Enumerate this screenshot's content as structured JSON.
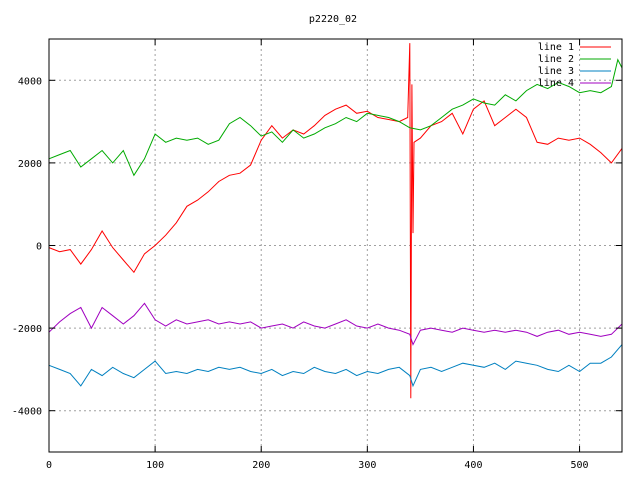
{
  "chart_data": {
    "type": "line",
    "title": "p2220_02",
    "xlabel": "",
    "ylabel": "",
    "xlim": [
      0,
      540
    ],
    "ylim": [
      -5000,
      5000
    ],
    "xticks": [
      0,
      100,
      200,
      300,
      400,
      500
    ],
    "yticks": [
      -4000,
      -2000,
      0,
      2000,
      4000
    ],
    "grid": true,
    "legend_position": "top-right",
    "series": [
      {
        "name": "line 1",
        "color": "#ff0000",
        "points": [
          [
            0,
            -50
          ],
          [
            10,
            -150
          ],
          [
            20,
            -100
          ],
          [
            30,
            -450
          ],
          [
            40,
            -100
          ],
          [
            50,
            350
          ],
          [
            60,
            -50
          ],
          [
            70,
            -350
          ],
          [
            80,
            -650
          ],
          [
            90,
            -200
          ],
          [
            100,
            0
          ],
          [
            110,
            250
          ],
          [
            120,
            550
          ],
          [
            130,
            950
          ],
          [
            140,
            1100
          ],
          [
            150,
            1300
          ],
          [
            160,
            1550
          ],
          [
            170,
            1700
          ],
          [
            180,
            1750
          ],
          [
            190,
            1950
          ],
          [
            200,
            2550
          ],
          [
            210,
            2900
          ],
          [
            220,
            2600
          ],
          [
            230,
            2800
          ],
          [
            240,
            2700
          ],
          [
            250,
            2900
          ],
          [
            260,
            3150
          ],
          [
            270,
            3300
          ],
          [
            280,
            3400
          ],
          [
            290,
            3200
          ],
          [
            300,
            3250
          ],
          [
            310,
            3100
          ],
          [
            320,
            3050
          ],
          [
            330,
            3000
          ],
          [
            338,
            3100
          ],
          [
            340,
            4900
          ],
          [
            341,
            -3700
          ],
          [
            342,
            3900
          ],
          [
            343,
            300
          ],
          [
            344,
            2500
          ],
          [
            350,
            2600
          ],
          [
            360,
            2900
          ],
          [
            370,
            3000
          ],
          [
            380,
            3200
          ],
          [
            390,
            2700
          ],
          [
            400,
            3300
          ],
          [
            410,
            3500
          ],
          [
            420,
            2900
          ],
          [
            430,
            3100
          ],
          [
            440,
            3300
          ],
          [
            450,
            3100
          ],
          [
            460,
            2500
          ],
          [
            470,
            2450
          ],
          [
            480,
            2600
          ],
          [
            490,
            2550
          ],
          [
            500,
            2600
          ],
          [
            510,
            2450
          ],
          [
            520,
            2250
          ],
          [
            530,
            2000
          ],
          [
            540,
            2350
          ]
        ]
      },
      {
        "name": "line 2",
        "color": "#00aa00",
        "points": [
          [
            0,
            2100
          ],
          [
            10,
            2200
          ],
          [
            20,
            2300
          ],
          [
            30,
            1900
          ],
          [
            40,
            2100
          ],
          [
            50,
            2300
          ],
          [
            60,
            2000
          ],
          [
            70,
            2300
          ],
          [
            80,
            1700
          ],
          [
            90,
            2100
          ],
          [
            100,
            2700
          ],
          [
            110,
            2500
          ],
          [
            120,
            2600
          ],
          [
            130,
            2550
          ],
          [
            140,
            2600
          ],
          [
            150,
            2450
          ],
          [
            160,
            2550
          ],
          [
            170,
            2950
          ],
          [
            180,
            3100
          ],
          [
            190,
            2900
          ],
          [
            200,
            2650
          ],
          [
            210,
            2750
          ],
          [
            220,
            2500
          ],
          [
            230,
            2800
          ],
          [
            240,
            2600
          ],
          [
            250,
            2700
          ],
          [
            260,
            2850
          ],
          [
            270,
            2950
          ],
          [
            280,
            3100
          ],
          [
            290,
            3000
          ],
          [
            300,
            3200
          ],
          [
            310,
            3150
          ],
          [
            320,
            3100
          ],
          [
            330,
            3000
          ],
          [
            340,
            2850
          ],
          [
            350,
            2800
          ],
          [
            360,
            2900
          ],
          [
            370,
            3100
          ],
          [
            380,
            3300
          ],
          [
            390,
            3400
          ],
          [
            400,
            3550
          ],
          [
            410,
            3450
          ],
          [
            420,
            3400
          ],
          [
            430,
            3650
          ],
          [
            440,
            3500
          ],
          [
            450,
            3750
          ],
          [
            460,
            3900
          ],
          [
            470,
            3800
          ],
          [
            480,
            3950
          ],
          [
            490,
            3850
          ],
          [
            500,
            3700
          ],
          [
            510,
            3750
          ],
          [
            520,
            3700
          ],
          [
            530,
            3850
          ],
          [
            536,
            4500
          ],
          [
            540,
            4300
          ]
        ]
      },
      {
        "name": "line 3",
        "color": "#0080c0",
        "points": [
          [
            0,
            -2900
          ],
          [
            10,
            -3000
          ],
          [
            20,
            -3100
          ],
          [
            30,
            -3400
          ],
          [
            40,
            -3000
          ],
          [
            50,
            -3150
          ],
          [
            60,
            -2950
          ],
          [
            70,
            -3100
          ],
          [
            80,
            -3200
          ],
          [
            90,
            -3000
          ],
          [
            100,
            -2800
          ],
          [
            110,
            -3100
          ],
          [
            120,
            -3050
          ],
          [
            130,
            -3100
          ],
          [
            140,
            -3000
          ],
          [
            150,
            -3050
          ],
          [
            160,
            -2950
          ],
          [
            170,
            -3000
          ],
          [
            180,
            -2950
          ],
          [
            190,
            -3050
          ],
          [
            200,
            -3100
          ],
          [
            210,
            -3000
          ],
          [
            220,
            -3150
          ],
          [
            230,
            -3050
          ],
          [
            240,
            -3100
          ],
          [
            250,
            -2950
          ],
          [
            260,
            -3050
          ],
          [
            270,
            -3100
          ],
          [
            280,
            -3000
          ],
          [
            290,
            -3150
          ],
          [
            300,
            -3050
          ],
          [
            310,
            -3100
          ],
          [
            320,
            -3000
          ],
          [
            330,
            -2950
          ],
          [
            340,
            -3150
          ],
          [
            343,
            -3400
          ],
          [
            350,
            -3000
          ],
          [
            360,
            -2950
          ],
          [
            370,
            -3050
          ],
          [
            380,
            -2950
          ],
          [
            390,
            -2850
          ],
          [
            400,
            -2900
          ],
          [
            410,
            -2950
          ],
          [
            420,
            -2850
          ],
          [
            430,
            -3000
          ],
          [
            440,
            -2800
          ],
          [
            450,
            -2850
          ],
          [
            460,
            -2900
          ],
          [
            470,
            -3000
          ],
          [
            480,
            -3050
          ],
          [
            490,
            -2900
          ],
          [
            500,
            -3050
          ],
          [
            510,
            -2850
          ],
          [
            520,
            -2850
          ],
          [
            530,
            -2700
          ],
          [
            540,
            -2400
          ]
        ]
      },
      {
        "name": "line 4",
        "color": "#a000c0",
        "points": [
          [
            0,
            -2100
          ],
          [
            10,
            -1850
          ],
          [
            20,
            -1650
          ],
          [
            30,
            -1500
          ],
          [
            40,
            -2000
          ],
          [
            50,
            -1500
          ],
          [
            60,
            -1700
          ],
          [
            70,
            -1900
          ],
          [
            80,
            -1700
          ],
          [
            90,
            -1400
          ],
          [
            100,
            -1800
          ],
          [
            110,
            -1950
          ],
          [
            120,
            -1800
          ],
          [
            130,
            -1900
          ],
          [
            140,
            -1850
          ],
          [
            150,
            -1800
          ],
          [
            160,
            -1900
          ],
          [
            170,
            -1850
          ],
          [
            180,
            -1900
          ],
          [
            190,
            -1850
          ],
          [
            200,
            -2000
          ],
          [
            210,
            -1950
          ],
          [
            220,
            -1900
          ],
          [
            230,
            -2000
          ],
          [
            240,
            -1850
          ],
          [
            250,
            -1950
          ],
          [
            260,
            -2000
          ],
          [
            270,
            -1900
          ],
          [
            280,
            -1800
          ],
          [
            290,
            -1950
          ],
          [
            300,
            -2000
          ],
          [
            310,
            -1900
          ],
          [
            320,
            -2000
          ],
          [
            330,
            -2050
          ],
          [
            340,
            -2150
          ],
          [
            343,
            -2400
          ],
          [
            350,
            -2050
          ],
          [
            360,
            -2000
          ],
          [
            370,
            -2050
          ],
          [
            380,
            -2100
          ],
          [
            390,
            -2000
          ],
          [
            400,
            -2050
          ],
          [
            410,
            -2100
          ],
          [
            420,
            -2050
          ],
          [
            430,
            -2100
          ],
          [
            440,
            -2050
          ],
          [
            450,
            -2100
          ],
          [
            460,
            -2200
          ],
          [
            470,
            -2100
          ],
          [
            480,
            -2050
          ],
          [
            490,
            -2150
          ],
          [
            500,
            -2100
          ],
          [
            510,
            -2150
          ],
          [
            520,
            -2200
          ],
          [
            530,
            -2150
          ],
          [
            540,
            -1900
          ]
        ]
      }
    ]
  }
}
